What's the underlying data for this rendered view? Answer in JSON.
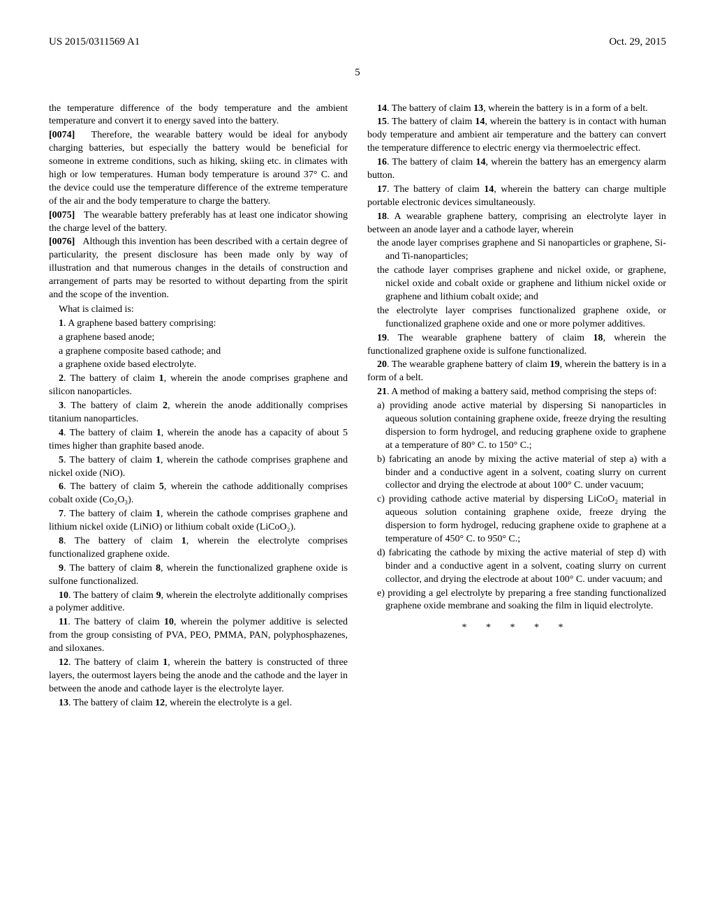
{
  "header": {
    "left": "US 2015/0311569 A1",
    "right": "Oct. 29, 2015"
  },
  "page_number": "5",
  "left_column": {
    "p1": "the temperature difference of the body temperature and the ambient temperature and convert it to energy saved into the battery.",
    "p2_num": "[0074]",
    "p2": "Therefore, the wearable battery would be ideal for anybody charging batteries, but especially the battery would be beneficial for someone in extreme conditions, such as hiking, skiing etc. in climates with high or low temperatures. Human body temperature is around 37° C. and the device could use the temperature difference of the extreme temperature of the air and the body temperature to charge the battery.",
    "p3_num": "[0075]",
    "p3": "The wearable battery preferably has at least one indicator showing the charge level of the battery.",
    "p4_num": "[0076]",
    "p4": "Although this invention has been described with a certain degree of particularity, the present disclosure has been made only by way of illustration and that numerous changes in the details of construction and arrangement of parts may be resorted to without departing from the spirit and the scope of the invention.",
    "what_claimed": "What is claimed is:",
    "c1_num": "1",
    "c1": ". A graphene based battery comprising:",
    "c1_a": "a graphene based anode;",
    "c1_b": "a graphene composite based cathode; and",
    "c1_c": "a graphene oxide based electrolyte.",
    "c2_num": "2",
    "c2": ". The battery of claim ",
    "c2_ref": "1",
    "c2_end": ", wherein the anode comprises graphene and silicon nanoparticles.",
    "c3_num": "3",
    "c3": ". The battery of claim ",
    "c3_ref": "2",
    "c3_end": ", wherein the anode additionally comprises titanium nanoparticles.",
    "c4_num": "4",
    "c4": ". The battery of claim ",
    "c4_ref": "1",
    "c4_end": ", wherein the anode has a capacity of about 5 times higher than graphite based anode.",
    "c5_num": "5",
    "c5": ". The battery of claim ",
    "c5_ref": "1",
    "c5_end": ", wherein the cathode comprises graphene and nickel oxide (NiO).",
    "c6_num": "6",
    "c6": ". The battery of claim ",
    "c6_ref": "5",
    "c6_end": ", wherein the cathode additionally comprises cobalt oxide (Co₂O₃).",
    "c7_num": "7",
    "c7": ". The battery of claim ",
    "c7_ref": "1",
    "c7_end": ", wherein the cathode comprises graphene and lithium nickel oxide (LiNiO) or lithium cobalt oxide (LiCoO₂).",
    "c8_num": "8",
    "c8": ". The battery of claim ",
    "c8_ref": "1",
    "c8_end": ", wherein the electrolyte comprises functionalized graphene oxide.",
    "c9_num": "9",
    "c9": ". The battery of claim ",
    "c9_ref": "8",
    "c9_end": ", wherein the functionalized graphene oxide is sulfone functionalized.",
    "c10_num": "10",
    "c10": ". The battery of claim ",
    "c10_ref": "9",
    "c10_end": ", wherein the electrolyte additionally comprises a polymer additive.",
    "c11_num": "11",
    "c11": ". The battery of claim ",
    "c11_ref": "10",
    "c11_end": ", wherein the polymer additive is selected from the group consisting of PVA, PEO, PMMA, PAN, polyphosphazenes, and siloxanes.",
    "c12_num": "12",
    "c12": ". The battery of claim ",
    "c12_ref": "1",
    "c12_end": ", wherein the battery is constructed of three layers, the outermost layers being the anode and the cathode and the layer in between the anode and cathode layer is the electrolyte layer.",
    "c13_num": "13",
    "c13": ". The battery of claim ",
    "c13_ref": "12",
    "c13_end": ", wherein the electrolyte is a gel."
  },
  "right_column": {
    "c14_num": "14",
    "c14": ". The battery of claim ",
    "c14_ref": "13",
    "c14_end": ", wherein the battery is in a form of a belt.",
    "c15_num": "15",
    "c15": ". The battery of claim ",
    "c15_ref": "14",
    "c15_end": ", wherein the battery is in contact with human body temperature and ambient air temperature and the battery can convert the temperature difference to electric energy via thermoelectric effect.",
    "c16_num": "16",
    "c16": ". The battery of claim ",
    "c16_ref": "14",
    "c16_end": ", wherein the battery has an emergency alarm button.",
    "c17_num": "17",
    "c17": ". The battery of claim ",
    "c17_ref": "14",
    "c17_end": ", wherein the battery can charge multiple portable electronic devices simultaneously.",
    "c18_num": "18",
    "c18": ". A wearable graphene battery, comprising an electrolyte layer in between an anode layer and a cathode layer, wherein",
    "c18_a": "the anode layer comprises graphene and Si nanoparticles or graphene, Si- and Ti-nanoparticles;",
    "c18_b": "the cathode layer comprises graphene and nickel oxide, or graphene, nickel oxide and cobalt oxide or graphene and lithium nickel oxide or graphene and lithium cobalt oxide; and",
    "c18_c": "the electrolyte layer comprises functionalized graphene oxide, or functionalized graphene oxide and one or more polymer additives.",
    "c19_num": "19",
    "c19": ". The wearable graphene battery of claim ",
    "c19_ref": "18",
    "c19_end": ", wherein the functionalized graphene oxide is sulfone functionalized.",
    "c20_num": "20",
    "c20": ". The wearable graphene battery of claim ",
    "c20_ref": "19",
    "c20_end": ", wherein the battery is in a form of a belt.",
    "c21_num": "21",
    "c21": ". A method of making a battery said, method comprising the steps of:",
    "c21_a": "a) providing anode active material by dispersing Si nanoparticles in aqueous solution containing graphene oxide, freeze drying the resulting dispersion to form hydrogel, and reducing graphene oxide to graphene at a temperature of 80° C. to 150° C.;",
    "c21_b": "b) fabricating an anode by mixing the active material of step a) with a binder and a conductive agent in a solvent, coating slurry on current collector and drying the electrode at about 100° C. under vacuum;",
    "c21_c": "c) providing cathode active material by dispersing LiCoO₂ material in aqueous solution containing graphene oxide, freeze drying the dispersion to form hydrogel, reducing graphene oxide to graphene at a temperature of 450° C. to 950° C.;",
    "c21_d": "d) fabricating the cathode by mixing the active material of step d) with binder and a conductive agent in a solvent, coating slurry on current collector, and drying the electrode at about 100° C. under vacuum; and",
    "c21_e": "e) providing a gel electrolyte by preparing a free standing functionalized graphene oxide membrane and soaking the film in liquid electrolyte.",
    "end_marks": "* * * * *"
  }
}
